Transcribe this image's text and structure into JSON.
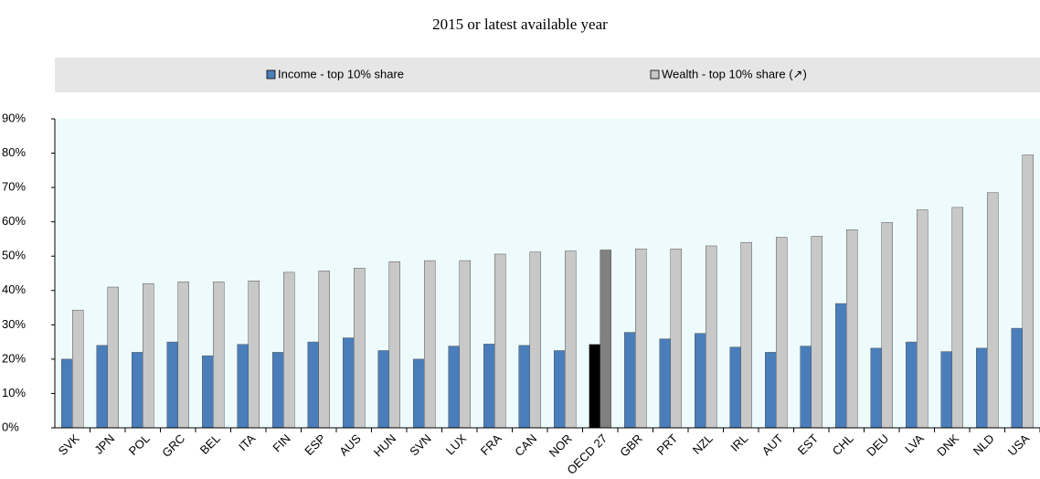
{
  "chart_data": {
    "type": "bar",
    "title": "2015 or latest available year",
    "categories": [
      "SVK",
      "JPN",
      "POL",
      "GRC",
      "BEL",
      "ITA",
      "FIN",
      "ESP",
      "AUS",
      "HUN",
      "SVN",
      "LUX",
      "FRA",
      "CAN",
      "NOR",
      "OECD 27",
      "GBR",
      "PRT",
      "NZL",
      "IRL",
      "AUT",
      "EST",
      "CHL",
      "DEU",
      "LVA",
      "DNK",
      "NLD",
      "USA"
    ],
    "series": [
      {
        "name": "Income - top 10% share",
        "color": "#4a7ebb",
        "colors": [
          "#4a7ebb",
          "#4a7ebb",
          "#4a7ebb",
          "#4a7ebb",
          "#4a7ebb",
          "#4a7ebb",
          "#4a7ebb",
          "#4a7ebb",
          "#4a7ebb",
          "#4a7ebb",
          "#4a7ebb",
          "#4a7ebb",
          "#4a7ebb",
          "#4a7ebb",
          "#4a7ebb",
          "#000000",
          "#4a7ebb",
          "#4a7ebb",
          "#4a7ebb",
          "#4a7ebb",
          "#4a7ebb",
          "#4a7ebb",
          "#4a7ebb",
          "#4a7ebb",
          "#4a7ebb",
          "#4a7ebb",
          "#4a7ebb",
          "#4a7ebb"
        ],
        "values": [
          20,
          24,
          22,
          25,
          21,
          24.3,
          22,
          25,
          26.2,
          22.5,
          20,
          23.8,
          24.4,
          24,
          22.5,
          24.3,
          27.8,
          25.9,
          27.5,
          23.5,
          22,
          23.8,
          36.2,
          23.2,
          25,
          22.2,
          23.2,
          29
        ]
      },
      {
        "name": "Wealth - top 10% share (↗)",
        "color": "#c8c8c8",
        "colors": [
          "#c8c8c8",
          "#c8c8c8",
          "#c8c8c8",
          "#c8c8c8",
          "#c8c8c8",
          "#c8c8c8",
          "#c8c8c8",
          "#c8c8c8",
          "#c8c8c8",
          "#c8c8c8",
          "#c8c8c8",
          "#c8c8c8",
          "#c8c8c8",
          "#c8c8c8",
          "#c8c8c8",
          "#808080",
          "#c8c8c8",
          "#c8c8c8",
          "#c8c8c8",
          "#c8c8c8",
          "#c8c8c8",
          "#c8c8c8",
          "#c8c8c8",
          "#c8c8c8",
          "#c8c8c8",
          "#c8c8c8",
          "#c8c8c8",
          "#c8c8c8"
        ],
        "values": [
          34.3,
          41,
          42,
          42.5,
          42.5,
          42.8,
          45.3,
          45.7,
          46.5,
          48.4,
          48.7,
          48.7,
          50.6,
          51.2,
          51.5,
          51.8,
          52.1,
          52.1,
          53,
          54,
          55.5,
          55.8,
          57.7,
          59.8,
          63.5,
          64.2,
          68.5,
          79.5
        ]
      }
    ],
    "ylim": [
      0,
      90
    ],
    "yticks": [
      {
        "value": 0,
        "label": "0%"
      },
      {
        "value": 10,
        "label": "10%"
      },
      {
        "value": 20,
        "label": "20%"
      },
      {
        "value": 30,
        "label": "30%"
      },
      {
        "value": 40,
        "label": "40%"
      },
      {
        "value": 50,
        "label": "50%"
      },
      {
        "value": 60,
        "label": "60%"
      },
      {
        "value": 70,
        "label": "70%"
      },
      {
        "value": 80,
        "label": "80%"
      },
      {
        "value": 90,
        "label": "90%"
      }
    ]
  }
}
